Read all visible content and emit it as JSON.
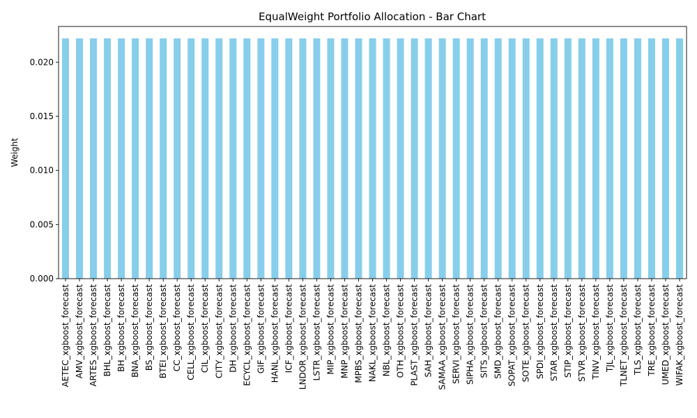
{
  "chart_data": {
    "type": "bar",
    "title": "EqualWeight Portfolio Allocation - Bar Chart",
    "xlabel": "",
    "ylabel": "Weight",
    "ylim": [
      0,
      0.0233
    ],
    "yticks": [
      0.0,
      0.005,
      0.01,
      0.015,
      0.02
    ],
    "ytick_labels": [
      "0.000",
      "0.005",
      "0.010",
      "0.015",
      "0.020"
    ],
    "grid": false,
    "legend": "none",
    "bar_color": "#87ceeb",
    "categories": [
      "AETEC_xgboost_forecast",
      "AMV_xgboost_forecast",
      "ARTES_xgboost_forecast",
      "BHL_xgboost_forecast",
      "BH_xgboost_forecast",
      "BNA_xgboost_forecast",
      "BS_xgboost_forecast",
      "BTEI_xgboost_forecast",
      "CC_xgboost_forecast",
      "CELL_xgboost_forecast",
      "CIL_xgboost_forecast",
      "CITY_xgboost_forecast",
      "DH_xgboost_forecast",
      "ECYCL_xgboost_forecast",
      "GIF_xgboost_forecast",
      "HANL_xgboost_forecast",
      "ICF_xgboost_forecast",
      "LNDOR_xgboost_forecast",
      "LSTR_xgboost_forecast",
      "MIP_xgboost_forecast",
      "MNP_xgboost_forecast",
      "MPBS_xgboost_forecast",
      "NAKL_xgboost_forecast",
      "NBL_xgboost_forecast",
      "OTH_xgboost_forecast",
      "PLAST_xgboost_forecast",
      "SAH_xgboost_forecast",
      "SAMAA_xgboost_forecast",
      "SERVI_xgboost_forecast",
      "SIPHA_xgboost_forecast",
      "SITS_xgboost_forecast",
      "SMD_xgboost_forecast",
      "SOPAT_xgboost_forecast",
      "SOTE_xgboost_forecast",
      "SPDI_xgboost_forecast",
      "STAR_xgboost_forecast",
      "STIP_xgboost_forecast",
      "STVR_xgboost_forecast",
      "TINV_xgboost_forecast",
      "TJL_xgboost_forecast",
      "TLNET_xgboost_forecast",
      "TLS_xgboost_forecast",
      "TRE_xgboost_forecast",
      "UMED_xgboost_forecast",
      "WIFAK_xgboost_forecast"
    ],
    "values": [
      0.0222,
      0.0222,
      0.0222,
      0.0222,
      0.0222,
      0.0222,
      0.0222,
      0.0222,
      0.0222,
      0.0222,
      0.0222,
      0.0222,
      0.0222,
      0.0222,
      0.0222,
      0.0222,
      0.0222,
      0.0222,
      0.0222,
      0.0222,
      0.0222,
      0.0222,
      0.0222,
      0.0222,
      0.0222,
      0.0222,
      0.0222,
      0.0222,
      0.0222,
      0.0222,
      0.0222,
      0.0222,
      0.0222,
      0.0222,
      0.0222,
      0.0222,
      0.0222,
      0.0222,
      0.0222,
      0.0222,
      0.0222,
      0.0222,
      0.0222,
      0.0222,
      0.0222
    ]
  }
}
